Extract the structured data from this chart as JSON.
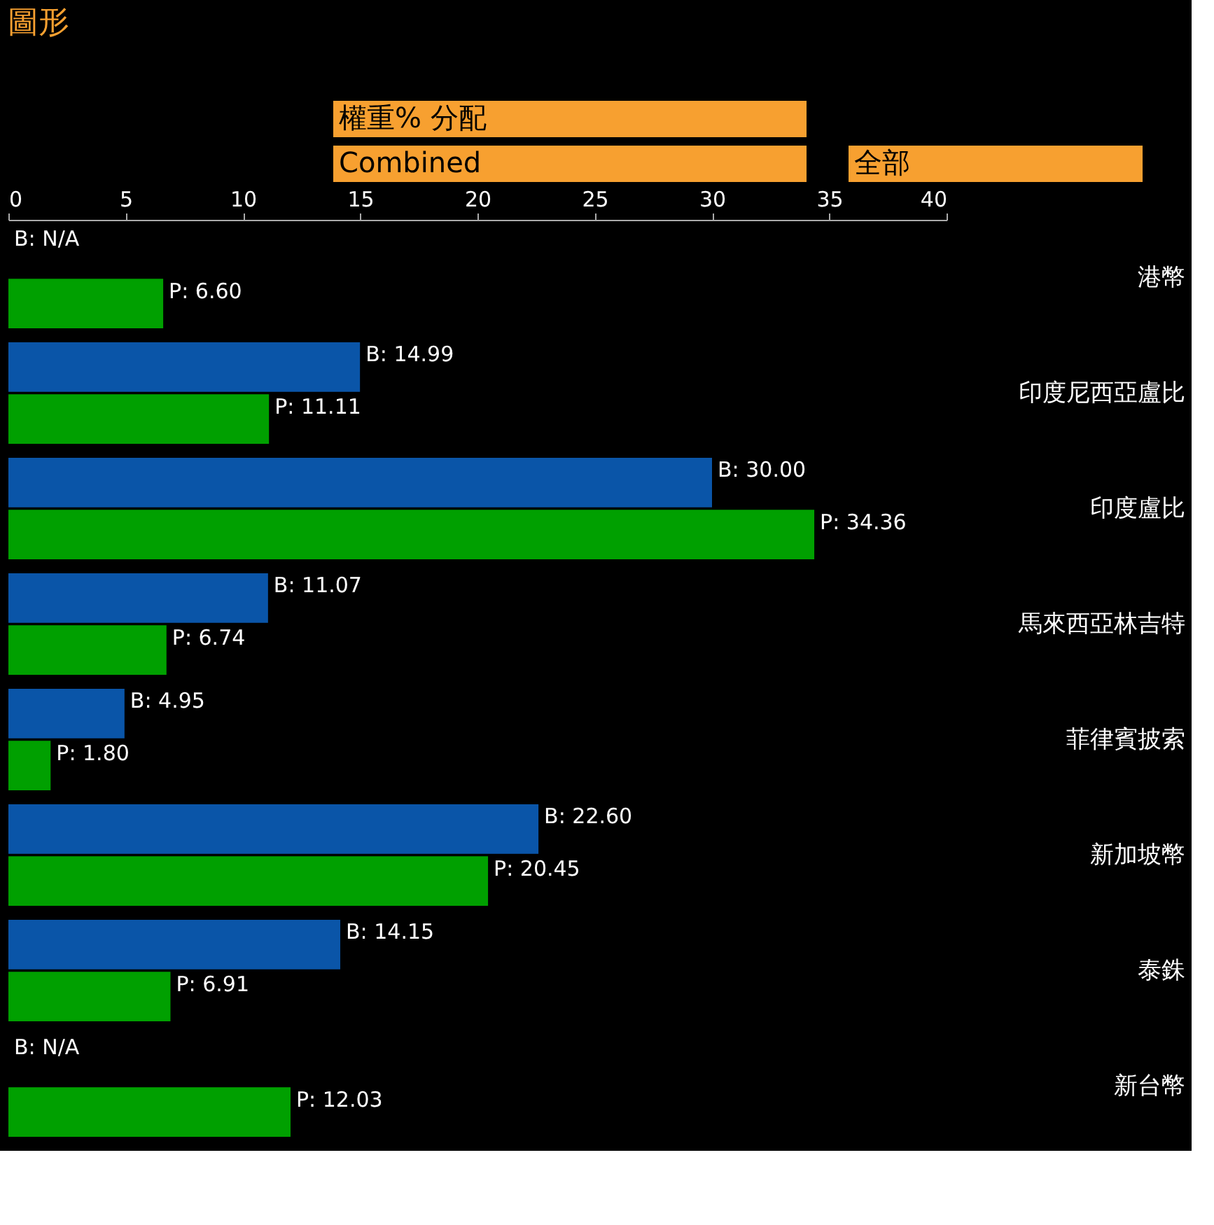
{
  "chart_data": {
    "type": "bar",
    "orientation": "horizontal",
    "title": "圖形",
    "annotations": [
      "權重% 分配",
      "Combined",
      "全部"
    ],
    "categories": [
      "港幣",
      "印度尼西亞盧比",
      "印度盧比",
      "馬來西亞林吉特",
      "菲律賓披索",
      "新加坡幣",
      "泰銖",
      "新台幣"
    ],
    "series": [
      {
        "color": "#0a55a8",
        "values": [
          null,
          14.99,
          30.0,
          11.07,
          4.95,
          22.6,
          14.15,
          null
        ],
        "value_labels": [
          "B: N/A",
          "B: 14.99",
          "B: 30.00",
          "B: 11.07",
          "B: 4.95",
          "B: 22.60",
          "B: 14.15",
          "B: N/A"
        ]
      },
      {
        "color": "#00a000",
        "values": [
          6.6,
          11.11,
          34.36,
          6.74,
          1.8,
          20.45,
          6.91,
          12.03
        ],
        "value_labels": [
          "P: 6.60",
          "P: 11.11",
          "P: 34.36",
          "P: 6.74",
          "P: 1.80",
          "P: 20.45",
          "P: 6.91",
          "P: 12.03"
        ]
      }
    ],
    "xlim": [
      0,
      40
    ],
    "xticks": [
      0,
      5,
      10,
      15,
      20,
      25,
      30,
      35,
      40
    ],
    "grid": false,
    "legend": false
  }
}
